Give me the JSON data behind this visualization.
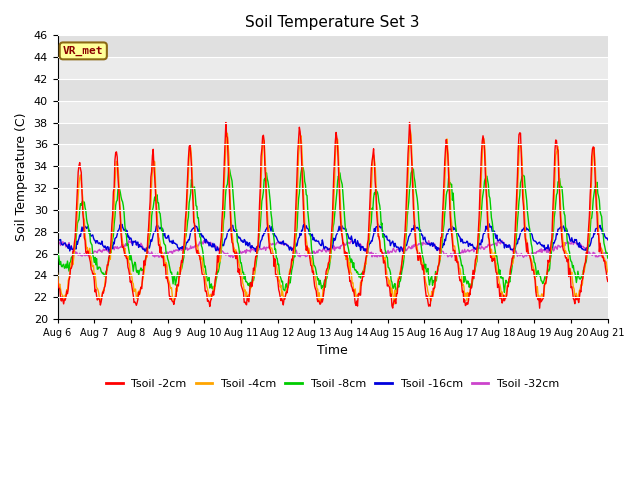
{
  "title": "Soil Temperature Set 3",
  "xlabel": "Time",
  "ylabel": "Soil Temperature (C)",
  "ylim": [
    20,
    46
  ],
  "yticks": [
    20,
    22,
    24,
    26,
    28,
    30,
    32,
    34,
    36,
    38,
    40,
    42,
    44,
    46
  ],
  "xtick_labels": [
    "Aug 6",
    "Aug 7",
    "Aug 8",
    "Aug 9",
    "Aug 10",
    "Aug 11",
    "Aug 12",
    "Aug 13",
    "Aug 14",
    "Aug 15",
    "Aug 16",
    "Aug 17",
    "Aug 18",
    "Aug 19",
    "Aug 20",
    "Aug 21"
  ],
  "annotation_text": "VR_met",
  "bg_color": "#e8e8e8",
  "bg_band_color": "#d4d4d4",
  "lines": [
    {
      "label": "Tsoil -2cm",
      "color": "#ff0000"
    },
    {
      "label": "Tsoil -4cm",
      "color": "#ffa500"
    },
    {
      "label": "Tsoil -8cm",
      "color": "#00cc00"
    },
    {
      "label": "Tsoil -16cm",
      "color": "#0000dd"
    },
    {
      "label": "Tsoil -32cm",
      "color": "#cc44cc"
    }
  ]
}
